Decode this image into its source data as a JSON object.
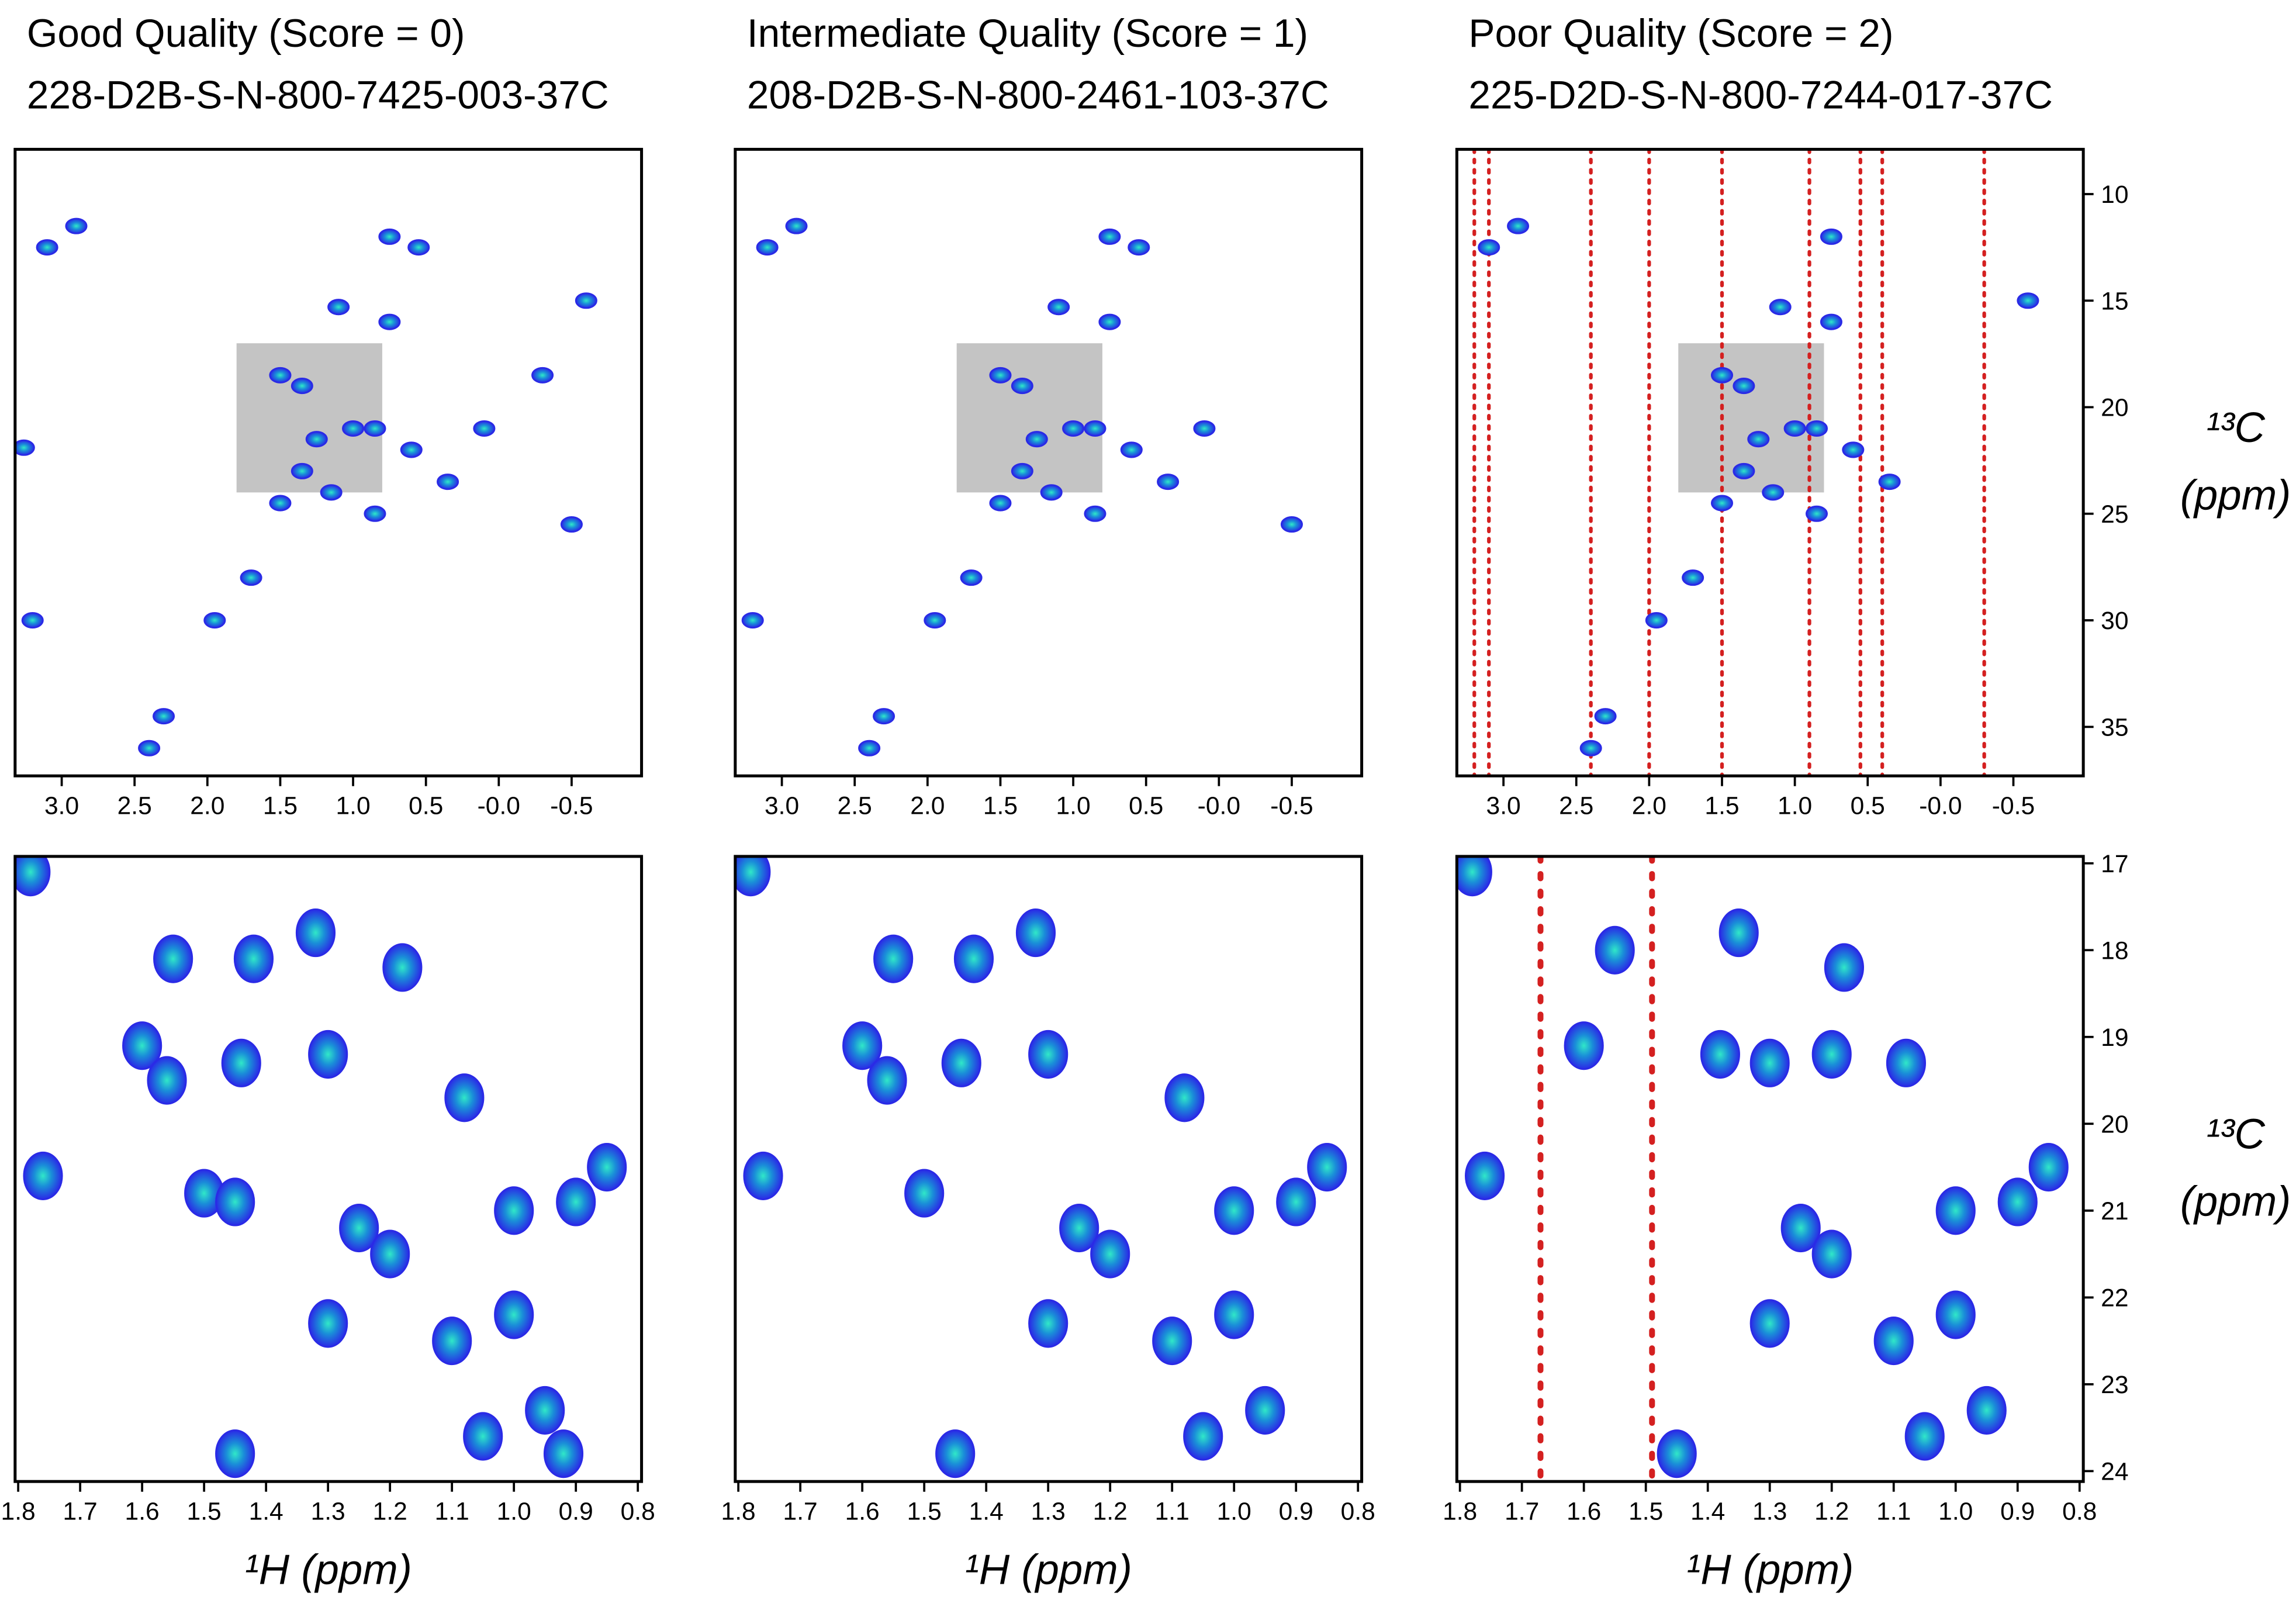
{
  "chart_data": [
    {
      "type": "contour",
      "title": "Good Quality (Score = 0)",
      "subtitle": "228-D2B-S-N-800-7425-003-37C",
      "xlim": [
        3.32,
        -0.98
      ],
      "xticks": [
        {
          "value": 3,
          "label": "3.0"
        },
        2.5,
        {
          "value": 2,
          "label": "2.0"
        },
        1.5,
        {
          "value": 1,
          "label": "1.0"
        },
        0.5,
        {
          "value": 0,
          "label": "-0.0"
        },
        -0.5
      ],
      "ylim": [
        37.3,
        7.9
      ],
      "color": "#2a2ae6",
      "zoom_region": [
        1.8,
        0.8,
        17,
        24
      ],
      "zoom_color": "#c4c4c4",
      "peaks_x": [
        3.1,
        2.9,
        0.75,
        0.55,
        1.1,
        0.75,
        1.5,
        1.35,
        1.0,
        1.25,
        0.85,
        0.6,
        1.35,
        1.15,
        1.5,
        0.85,
        0.35,
        0.1,
        -0.3,
        1.7,
        1.95,
        3.2,
        2.3,
        2.4,
        -0.5,
        -0.6,
        3.26
      ],
      "peaks_y": [
        12.5,
        11.5,
        12,
        12.5,
        15.3,
        16,
        18.5,
        19,
        21,
        21.5,
        21,
        22,
        23,
        24,
        24.5,
        25,
        23.5,
        21,
        18.5,
        28,
        30,
        30,
        34.5,
        36,
        25.5,
        15,
        21.9
      ]
    },
    {
      "type": "contour",
      "title": "Intermediate Quality (Score = 1)",
      "subtitle": "208-D2B-S-N-800-2461-103-37C",
      "xlim": [
        3.32,
        -0.98
      ],
      "xticks": [
        {
          "value": 3,
          "label": "3.0"
        },
        2.5,
        {
          "value": 2,
          "label": "2.0"
        },
        1.5,
        {
          "value": 1,
          "label": "1.0"
        },
        0.5,
        {
          "value": 0,
          "label": "-0.0"
        },
        -0.5
      ],
      "ylim": [
        37.3,
        7.9
      ],
      "color": "#2a2ae6",
      "zoom_region": [
        1.8,
        0.8,
        17,
        24
      ],
      "zoom_color": "#c4c4c4",
      "peaks_x": [
        3.1,
        2.9,
        0.75,
        0.55,
        1.1,
        0.75,
        1.5,
        1.35,
        1.0,
        1.25,
        0.85,
        0.6,
        1.35,
        1.15,
        1.5,
        0.85,
        0.35,
        0.1,
        1.7,
        1.95,
        3.2,
        2.3,
        2.4,
        -0.5
      ],
      "peaks_y": [
        12.5,
        11.5,
        12,
        12.5,
        15.3,
        16,
        18.5,
        19,
        21,
        21.5,
        21,
        22,
        23,
        24,
        24.5,
        25,
        23.5,
        21,
        28,
        30,
        30,
        34.5,
        36,
        25.5
      ]
    },
    {
      "type": "contour",
      "title": "Poor Quality (Score = 2)",
      "subtitle": "225-D2D-S-N-800-7244-017-37C",
      "xlim": [
        3.32,
        -0.98
      ],
      "xticks": [
        {
          "value": 3,
          "label": "3.0"
        },
        2.5,
        {
          "value": 2,
          "label": "2.0"
        },
        1.5,
        {
          "value": 1,
          "label": "1.0"
        },
        0.5,
        {
          "value": 0,
          "label": "-0.0"
        },
        -0.5
      ],
      "ylim": [
        37.3,
        7.9
      ],
      "yticks": [
        10,
        15,
        20,
        25,
        30,
        35
      ],
      "ylabel_lines": [
        "¹³C",
        "(ppm)"
      ],
      "color": "#2a2ae6",
      "zoom_region": [
        1.8,
        0.8,
        17,
        24
      ],
      "zoom_color": "#c4c4c4",
      "noise_x": [
        3.2,
        3.1,
        2.4,
        2.0,
        1.5,
        0.9,
        0.55,
        0.4,
        -0.3
      ],
      "noise_color": "#d42020",
      "peaks_x": [
        3.1,
        2.9,
        0.75,
        1.1,
        0.75,
        1.5,
        1.35,
        1.0,
        1.25,
        0.85,
        0.6,
        1.35,
        1.15,
        1.5,
        0.85,
        0.35,
        1.7,
        1.95,
        2.3,
        2.4,
        -0.6
      ],
      "peaks_y": [
        12.5,
        11.5,
        12,
        15.3,
        16,
        18.5,
        19,
        21,
        21.5,
        21,
        22,
        23,
        24,
        24.5,
        25,
        23.5,
        28,
        30,
        34.5,
        36,
        15
      ]
    },
    {
      "type": "contour",
      "xlabel": "¹H (ppm)",
      "xlim": [
        1.805,
        0.794
      ],
      "xticks": [
        1.8,
        1.7,
        1.6,
        1.5,
        1.4,
        1.3,
        1.2,
        1.1,
        {
          "value": 1,
          "label": "1.0"
        },
        0.9,
        0.8
      ],
      "ylim": [
        24.12,
        16.92
      ],
      "color": "#2a2ae6",
      "peaks_x": [
        1.78,
        1.55,
        1.42,
        1.32,
        1.18,
        1.6,
        1.56,
        1.44,
        1.3,
        1.08,
        1.76,
        1.5,
        1.45,
        1.25,
        1.2,
        1.0,
        0.9,
        0.85,
        1.3,
        1.1,
        1.0,
        0.95,
        1.45,
        1.05,
        0.92
      ],
      "peaks_y": [
        17.1,
        18.1,
        18.1,
        17.8,
        18.2,
        19.1,
        19.5,
        19.3,
        19.2,
        19.7,
        20.6,
        20.8,
        20.9,
        21.2,
        21.5,
        21.0,
        20.9,
        20.5,
        22.3,
        22.5,
        22.2,
        23.3,
        23.8,
        23.6,
        23.8
      ]
    },
    {
      "type": "contour",
      "xlabel": "¹H (ppm)",
      "xlim": [
        1.805,
        0.794
      ],
      "xticks": [
        1.8,
        1.7,
        1.6,
        1.5,
        1.4,
        1.3,
        1.2,
        1.1,
        {
          "value": 1,
          "label": "1.0"
        },
        0.9,
        0.8
      ],
      "ylim": [
        24.12,
        16.92
      ],
      "color": "#2a2ae6",
      "peaks_x": [
        1.78,
        1.55,
        1.42,
        1.32,
        1.6,
        1.56,
        1.44,
        1.3,
        1.08,
        1.76,
        1.5,
        1.25,
        1.2,
        1.0,
        0.9,
        0.85,
        1.3,
        1.1,
        1.0,
        0.95,
        1.45,
        1.05
      ],
      "peaks_y": [
        17.1,
        18.1,
        18.1,
        17.8,
        19.1,
        19.5,
        19.3,
        19.2,
        19.7,
        20.6,
        20.8,
        21.2,
        21.5,
        21.0,
        20.9,
        20.5,
        22.3,
        22.5,
        22.2,
        23.3,
        23.8,
        23.6
      ]
    },
    {
      "type": "contour",
      "xlabel": "¹H (ppm)",
      "xlim": [
        1.805,
        0.794
      ],
      "xticks": [
        1.8,
        1.7,
        1.6,
        1.5,
        1.4,
        1.3,
        1.2,
        1.1,
        {
          "value": 1,
          "label": "1.0"
        },
        0.9,
        0.8
      ],
      "ylim": [
        24.12,
        16.92
      ],
      "yticks": [
        17,
        18,
        19,
        20,
        21,
        22,
        23,
        24
      ],
      "ylabel_lines": [
        "¹³C",
        "(ppm)"
      ],
      "color": "#2a2ae6",
      "noise_x": [
        1.67,
        1.49
      ],
      "noise_color": "#d42020",
      "peaks_x": [
        1.78,
        1.55,
        1.35,
        1.18,
        1.6,
        1.38,
        1.3,
        1.2,
        1.08,
        1.76,
        1.25,
        1.2,
        1.0,
        0.9,
        0.85,
        1.3,
        1.1,
        1.0,
        0.95,
        1.45,
        1.05
      ],
      "peaks_y": [
        17.1,
        18.0,
        17.8,
        18.2,
        19.1,
        19.2,
        19.3,
        19.2,
        19.3,
        20.6,
        21.2,
        21.5,
        21.0,
        20.9,
        20.5,
        22.3,
        22.5,
        22.2,
        23.3,
        23.8,
        23.6
      ]
    }
  ]
}
